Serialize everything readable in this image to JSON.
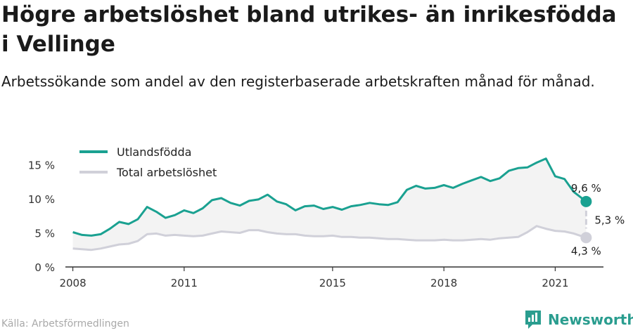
{
  "header": {
    "title": "Högre arbetslöshet bland utrikes- än inrikesfödda i Vellinge",
    "subtitle": "Arbetssökande som andel av den registerbaserade arbetskraften månad för månad."
  },
  "footer": {
    "source": "Källa: Arbetsförmedlingen",
    "brand": "Newsworthy",
    "brand_icon": "newsworthy-logo-icon"
  },
  "colors": {
    "foreign_born": "#1aa191",
    "total": "#d0d0d9",
    "fill": "#f3f3f3",
    "axis": "#333333"
  },
  "chart_data": {
    "type": "line",
    "x_ticks": [
      "2008",
      "2011",
      "2015",
      "2018",
      "2021"
    ],
    "x_range": [
      "2008-01",
      "2021-11"
    ],
    "ylim": [
      0,
      17
    ],
    "y_ticks": [
      {
        "value": 0,
        "label": "0 %"
      },
      {
        "value": 5,
        "label": "5 %"
      },
      {
        "value": 10,
        "label": "10 %"
      },
      {
        "value": 15,
        "label": "15 %"
      }
    ],
    "legend_position": "top-left",
    "series": [
      {
        "name": "Utlandsfödda",
        "color": "#1aa191",
        "points": [
          [
            "2008-01",
            5.1
          ],
          [
            "2008-04",
            4.7
          ],
          [
            "2008-07",
            4.6
          ],
          [
            "2008-10",
            4.8
          ],
          [
            "2009-01",
            5.6
          ],
          [
            "2009-04",
            6.6
          ],
          [
            "2009-07",
            6.3
          ],
          [
            "2009-10",
            7.0
          ],
          [
            "2010-01",
            8.8
          ],
          [
            "2010-04",
            8.1
          ],
          [
            "2010-07",
            7.2
          ],
          [
            "2010-10",
            7.6
          ],
          [
            "2011-01",
            8.3
          ],
          [
            "2011-04",
            7.9
          ],
          [
            "2011-07",
            8.6
          ],
          [
            "2011-10",
            9.8
          ],
          [
            "2012-01",
            10.1
          ],
          [
            "2012-04",
            9.4
          ],
          [
            "2012-07",
            9.0
          ],
          [
            "2012-10",
            9.7
          ],
          [
            "2013-01",
            9.9
          ],
          [
            "2013-04",
            10.6
          ],
          [
            "2013-07",
            9.6
          ],
          [
            "2013-10",
            9.2
          ],
          [
            "2014-01",
            8.3
          ],
          [
            "2014-04",
            8.9
          ],
          [
            "2014-07",
            9.0
          ],
          [
            "2014-10",
            8.5
          ],
          [
            "2015-01",
            8.8
          ],
          [
            "2015-04",
            8.4
          ],
          [
            "2015-07",
            8.9
          ],
          [
            "2015-10",
            9.1
          ],
          [
            "2016-01",
            9.4
          ],
          [
            "2016-04",
            9.2
          ],
          [
            "2016-07",
            9.1
          ],
          [
            "2016-10",
            9.5
          ],
          [
            "2017-01",
            11.3
          ],
          [
            "2017-04",
            11.9
          ],
          [
            "2017-07",
            11.5
          ],
          [
            "2017-10",
            11.6
          ],
          [
            "2018-01",
            12.0
          ],
          [
            "2018-04",
            11.6
          ],
          [
            "2018-07",
            12.2
          ],
          [
            "2018-10",
            12.7
          ],
          [
            "2019-01",
            13.2
          ],
          [
            "2019-04",
            12.6
          ],
          [
            "2019-07",
            13.0
          ],
          [
            "2019-10",
            14.1
          ],
          [
            "2020-01",
            14.5
          ],
          [
            "2020-04",
            14.6
          ],
          [
            "2020-07",
            15.3
          ],
          [
            "2020-10",
            15.9
          ],
          [
            "2021-01",
            13.3
          ],
          [
            "2021-04",
            12.9
          ],
          [
            "2021-07",
            11.0
          ],
          [
            "2021-11",
            9.6
          ]
        ]
      },
      {
        "name": "Total arbetslöshet",
        "color": "#d0d0d9",
        "points": [
          [
            "2008-01",
            2.7
          ],
          [
            "2008-04",
            2.6
          ],
          [
            "2008-07",
            2.5
          ],
          [
            "2008-10",
            2.7
          ],
          [
            "2009-01",
            3.0
          ],
          [
            "2009-04",
            3.3
          ],
          [
            "2009-07",
            3.4
          ],
          [
            "2009-10",
            3.8
          ],
          [
            "2010-01",
            4.8
          ],
          [
            "2010-04",
            4.9
          ],
          [
            "2010-07",
            4.6
          ],
          [
            "2010-10",
            4.7
          ],
          [
            "2011-01",
            4.6
          ],
          [
            "2011-04",
            4.5
          ],
          [
            "2011-07",
            4.6
          ],
          [
            "2011-10",
            4.9
          ],
          [
            "2012-01",
            5.2
          ],
          [
            "2012-04",
            5.1
          ],
          [
            "2012-07",
            5.0
          ],
          [
            "2012-10",
            5.4
          ],
          [
            "2013-01",
            5.4
          ],
          [
            "2013-04",
            5.1
          ],
          [
            "2013-07",
            4.9
          ],
          [
            "2013-10",
            4.8
          ],
          [
            "2014-01",
            4.8
          ],
          [
            "2014-04",
            4.6
          ],
          [
            "2014-07",
            4.5
          ],
          [
            "2014-10",
            4.5
          ],
          [
            "2015-01",
            4.6
          ],
          [
            "2015-04",
            4.4
          ],
          [
            "2015-07",
            4.4
          ],
          [
            "2015-10",
            4.3
          ],
          [
            "2016-01",
            4.3
          ],
          [
            "2016-04",
            4.2
          ],
          [
            "2016-07",
            4.1
          ],
          [
            "2016-10",
            4.1
          ],
          [
            "2017-01",
            4.0
          ],
          [
            "2017-04",
            3.9
          ],
          [
            "2017-07",
            3.9
          ],
          [
            "2017-10",
            3.9
          ],
          [
            "2018-01",
            4.0
          ],
          [
            "2018-04",
            3.9
          ],
          [
            "2018-07",
            3.9
          ],
          [
            "2018-10",
            4.0
          ],
          [
            "2019-01",
            4.1
          ],
          [
            "2019-04",
            4.0
          ],
          [
            "2019-07",
            4.2
          ],
          [
            "2019-10",
            4.3
          ],
          [
            "2020-01",
            4.4
          ],
          [
            "2020-04",
            5.1
          ],
          [
            "2020-07",
            6.0
          ],
          [
            "2020-10",
            5.6
          ],
          [
            "2021-01",
            5.3
          ],
          [
            "2021-04",
            5.2
          ],
          [
            "2021-07",
            4.9
          ],
          [
            "2021-11",
            4.3
          ]
        ]
      }
    ],
    "annotations": {
      "last_foreign": "9,6 %",
      "last_total": "4,3 %",
      "difference": "5,3 %"
    }
  }
}
